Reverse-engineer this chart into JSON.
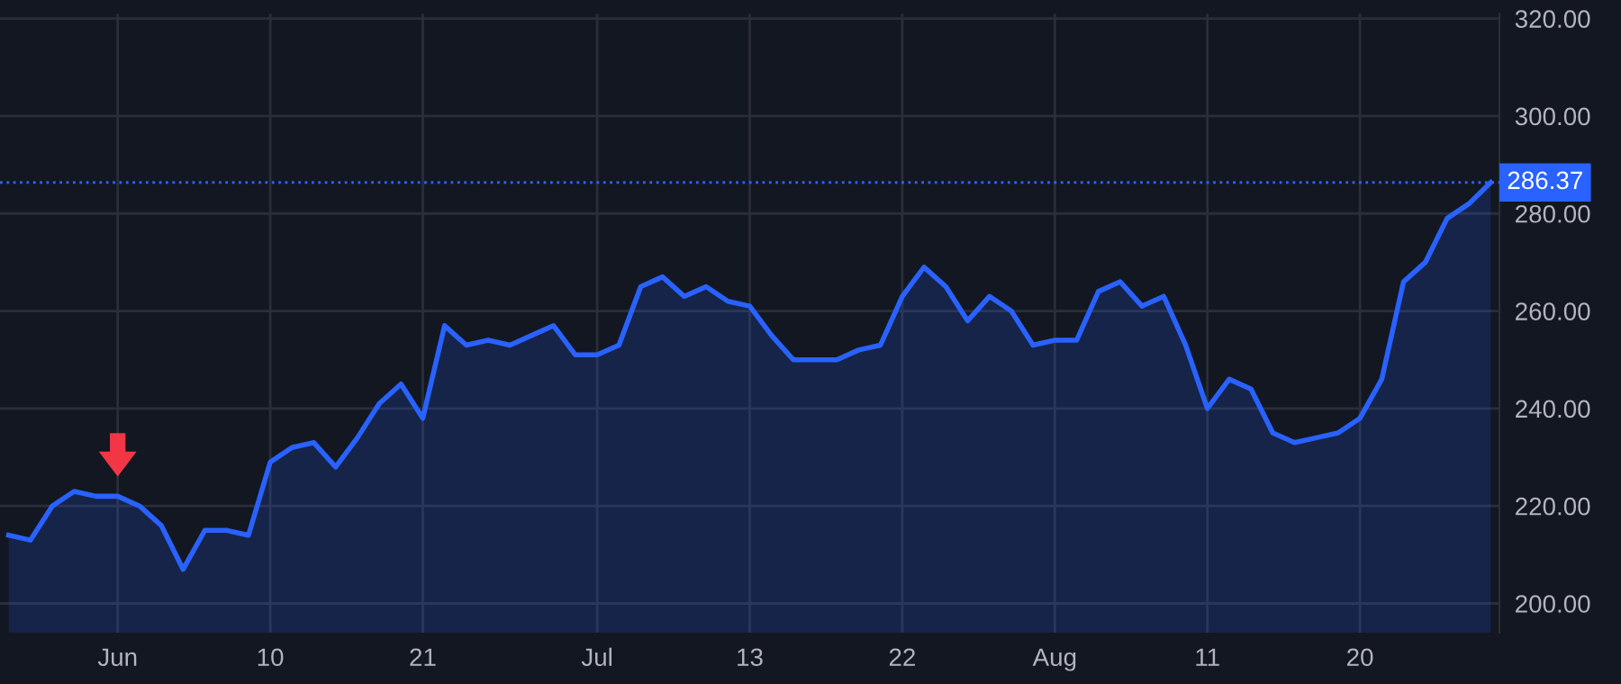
{
  "chart_data": {
    "type": "area",
    "categories": [
      null,
      null,
      null,
      null,
      null,
      "Jun",
      null,
      null,
      null,
      null,
      null,
      null,
      "10",
      null,
      null,
      null,
      null,
      null,
      null,
      "21",
      null,
      null,
      null,
      null,
      null,
      null,
      null,
      "Jul",
      null,
      null,
      null,
      null,
      null,
      null,
      "13",
      null,
      null,
      null,
      null,
      null,
      null,
      "22",
      null,
      null,
      null,
      null,
      null,
      null,
      "Aug",
      null,
      null,
      null,
      null,
      null,
      null,
      "11",
      null,
      null,
      null,
      null,
      null,
      null,
      "20",
      null,
      null,
      null,
      null,
      null,
      null
    ],
    "series": [
      {
        "color": "#2962ff",
        "values": [
          214,
          213,
          220,
          223,
          222,
          222,
          220,
          216,
          207,
          215,
          215,
          214,
          229,
          232,
          233,
          228,
          234,
          241,
          245,
          238,
          257,
          253,
          254,
          253,
          255,
          257,
          251,
          251,
          253,
          265,
          267,
          263,
          265,
          262,
          261,
          255,
          250,
          250,
          250,
          252,
          253,
          263,
          269,
          265,
          258,
          263,
          260,
          253,
          254,
          254,
          264,
          266,
          261,
          263,
          253,
          240,
          246,
          244,
          235,
          233,
          234,
          235,
          238,
          246,
          266,
          270,
          279,
          282,
          286.37
        ]
      }
    ],
    "ylim": [
      194,
      321
    ],
    "yticks": [
      {
        "value": 200,
        "label": "200.00"
      },
      {
        "value": 220,
        "label": "220.00"
      },
      {
        "value": 240,
        "label": "240.00"
      },
      {
        "value": 260,
        "label": "260.00"
      },
      {
        "value": 280,
        "label": "280.00"
      },
      {
        "value": 300,
        "label": "300.00"
      },
      {
        "value": 320,
        "label": "320.00"
      }
    ],
    "ref_lines": [
      {
        "axis": "y",
        "value": 286.37,
        "label": "286.37",
        "color": "#2962ff",
        "line_style": "dotted"
      }
    ],
    "grid": true
  }
}
